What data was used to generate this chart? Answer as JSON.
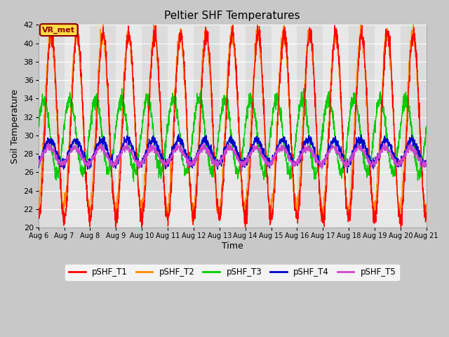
{
  "title": "Peltier SHF Temperatures",
  "xlabel": "Time",
  "ylabel": "Soil Temperature",
  "ylim": [
    20,
    42
  ],
  "yticks": [
    20,
    22,
    24,
    26,
    28,
    30,
    32,
    34,
    36,
    38,
    40,
    42
  ],
  "band_colors": [
    "#dcdcdc",
    "#e8e8e8"
  ],
  "grid_color": "#ffffff",
  "fig_facecolor": "#c8c8c8",
  "annotation_text": "VR_met",
  "annotation_bg": "#ffdd44",
  "annotation_border": "#8B0000",
  "series_colors": {
    "pSHF_T1": "#ff0000",
    "pSHF_T2": "#ff8800",
    "pSHF_T3": "#00cc00",
    "pSHF_T4": "#0000cc",
    "pSHF_T5": "#cc44cc"
  },
  "n_days": 15,
  "points_per_day": 144,
  "start_day": 6,
  "t1_mean": 31.0,
  "t1_amp": 10.0,
  "t1_phase": 0.0,
  "t2_mean": 31.5,
  "t2_amp": 9.5,
  "t2_phase": 0.15,
  "t3_mean": 30.0,
  "t3_amp": 4.0,
  "t3_phase": 1.8,
  "t4_mean": 28.2,
  "t4_amp": 1.3,
  "t4_phase": 0.4,
  "t5_mean": 27.8,
  "t5_amp": 0.9,
  "t5_phase": 0.6
}
